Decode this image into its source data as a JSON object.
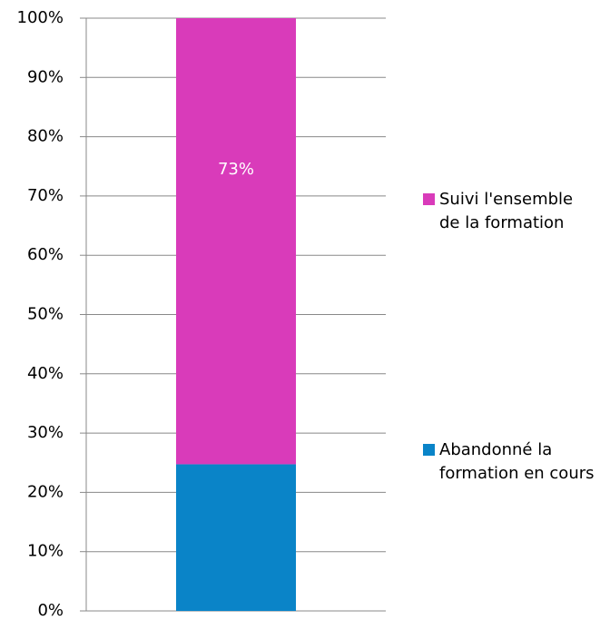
{
  "chart_data": {
    "type": "stacked_bar",
    "stacking": "percent",
    "categories": [
      null
    ],
    "series": [
      {
        "name": "Abandonné la formation en cours",
        "color": "#0a84c8",
        "values": [
          24
        ]
      },
      {
        "name": "Suivi l'ensemble de la formation",
        "color": "#d93bba",
        "values": [
          73
        ],
        "value_labels": [
          "73%"
        ]
      }
    ],
    "ylim": [
      0,
      100
    ],
    "yticks": [
      {
        "value": 0,
        "label": "0%"
      },
      {
        "value": 10,
        "label": "10%"
      },
      {
        "value": 20,
        "label": "20%"
      },
      {
        "value": 30,
        "label": "30%"
      },
      {
        "value": 40,
        "label": "40%"
      },
      {
        "value": 50,
        "label": "50%"
      },
      {
        "value": 60,
        "label": "60%"
      },
      {
        "value": 70,
        "label": "70%"
      },
      {
        "value": 80,
        "label": "80%"
      },
      {
        "value": 90,
        "label": "90%"
      },
      {
        "value": 100,
        "label": "100%"
      }
    ],
    "grid": true,
    "legend": "right"
  }
}
